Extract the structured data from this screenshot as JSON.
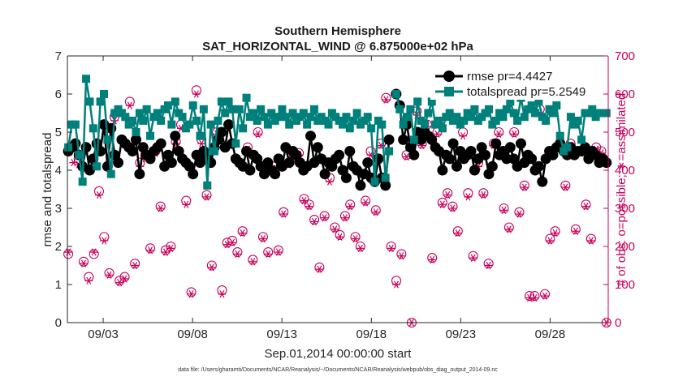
{
  "chart_data": {
    "type": "line",
    "title": "Southern Hemisphere",
    "subtitle": "SAT_HORIZONTAL_WIND @ 6.875000e+02 hPa",
    "xlabel": "Sep.01,2014 00:00:00 start",
    "ylabel": "rmse and totalspread",
    "ylabel_right": "# of obs: o=possible; ∗=assimilated",
    "footnote": "data file: /Users/gharamti/Documents/NCAR/Reanalysis/~/Documents/NCAR/Reanalysis/webpub/obs_diag_output_2014-09.nc",
    "xlim": [
      1.0,
      31.25
    ],
    "ylim": [
      0,
      7
    ],
    "ylim_right": [
      0,
      700
    ],
    "x_ticks": [
      3,
      8,
      13,
      18,
      23,
      28
    ],
    "x_tick_labels": [
      "09/03",
      "09/08",
      "09/13",
      "09/18",
      "09/23",
      "09/28"
    ],
    "y_ticks": [
      0,
      1,
      2,
      3,
      4,
      5,
      6,
      7
    ],
    "y_ticks_right": [
      0,
      100,
      200,
      300,
      400,
      500,
      600,
      700
    ],
    "grid": false,
    "legend_position": "top-right",
    "series": [
      {
        "name": "rmse pr=4.4427",
        "axis": "left",
        "color": "#000000",
        "marker": "circle",
        "values": [
          4.5,
          4.6,
          4.7,
          4.4,
          4.1,
          4.6,
          4.0,
          4.3,
          4.7,
          4.5,
          5.2,
          4.1,
          5.1,
          4.4,
          4.2,
          4.8,
          4.7,
          4.6,
          4.5,
          4.8,
          3.9,
          4.6,
          4.4,
          4.3,
          4.5,
          4.6,
          4.7,
          4.1,
          4.4,
          4.2,
          4.9,
          4.5,
          4.3,
          4.2,
          4.1,
          3.9,
          4.4,
          4.2,
          4.5,
          4.3,
          4.2,
          4.6,
          4.8,
          5.0,
          4.6,
          5.2,
          4.7,
          4.3,
          4.2,
          4.1,
          4.5,
          4.0,
          4.4,
          4.3,
          4.1,
          3.9,
          4.2,
          4.0,
          3.9,
          4.3,
          4.1,
          4.6,
          4.2,
          4.5,
          4.4,
          4.2,
          4.0,
          4.1,
          4.9,
          4.2,
          4.6,
          4.3,
          3.9,
          4.2,
          4.1,
          4.3,
          4.4,
          4.0,
          3.8,
          4.5,
          4.1,
          4.0,
          3.6,
          3.9,
          4.2,
          3.8,
          3.7,
          4.3,
          3.8,
          3.6,
          4.8,
          null,
          6.0,
          5.7,
          4.8,
          5.2,
          4.6,
          4.4,
          5.0,
          4.8,
          5.0,
          4.9,
          4.8,
          4.6,
          4.5,
          4.0,
          4.4,
          4.3,
          4.7,
          4.1,
          4.5,
          4.3,
          4.4,
          4.5,
          4.0,
          4.3,
          4.6,
          4.4,
          3.9,
          4.1,
          4.7,
          4.4,
          4.5,
          4.3,
          4.6,
          4.3,
          4.1,
          4.7,
          4.2,
          4.4,
          4.3,
          4.0,
          4.1,
          3.7,
          4.3,
          4.5,
          4.4,
          4.6,
          4.7,
          4.5,
          4.4,
          4.6,
          4.4,
          4.5,
          4.5,
          4.6,
          4.3,
          4.5,
          4.4,
          4.2,
          4.3,
          4.2
        ]
      },
      {
        "name": "totalspread pr=5.2549",
        "axis": "left",
        "color": "#00807a",
        "marker": "square",
        "values": [
          4.6,
          5.2,
          5.2,
          4.4,
          3.7,
          6.4,
          5.8,
          5.1,
          4.1,
          5.8,
          6.0,
          4.8,
          3.9,
          5.5,
          5.6,
          5.5,
          5.4,
          5.2,
          5.3,
          5.0,
          5.5,
          5.3,
          5.6,
          4.9,
          5.4,
          5.5,
          5.3,
          5.6,
          5.7,
          5.2,
          5.8,
          5.5,
          5.4,
          5.1,
          5.2,
          5.7,
          5.3,
          4.9,
          5.6,
          3.6,
          5.2,
          4.5,
          5.3,
          5.8,
          5.5,
          5.8,
          5.6,
          4.7,
          5.6,
          5.1,
          5.9,
          5.4,
          5.5,
          5.3,
          5.6,
          5.4,
          5.2,
          5.5,
          5.3,
          5.4,
          5.6,
          5.4,
          5.2,
          5.5,
          5.3,
          5.4,
          5.5,
          5.2,
          5.4,
          5.6,
          5.3,
          5.4,
          5.3,
          5.2,
          5.5,
          5.4,
          5.3,
          5.2,
          5.4,
          5.1,
          5.3,
          5.5,
          5.2,
          5.3,
          5.4,
          5.1,
          3.7,
          5.3,
          5.2,
          3.8,
          4.5,
          null,
          6.0,
          5.6,
          5.2,
          5.4,
          5.6,
          4.8,
          5.8,
          5.3,
          5.2,
          5.5,
          5.8,
          5.2,
          5.3,
          5.1,
          5.4,
          5.5,
          5.3,
          5.4,
          5.2,
          5.3,
          5.5,
          5.4,
          5.6,
          5.3,
          5.4,
          5.5,
          5.6,
          5.2,
          5.3,
          5.5,
          5.4,
          5.6,
          5.8,
          5.5,
          5.3,
          5.9,
          5.4,
          5.6,
          5.7,
          5.5,
          5.8,
          5.4,
          5.3,
          5.6,
          5.5,
          5.7,
          4.9,
          4.5,
          4.6,
          5.4,
          5.2,
          5.3,
          4.8,
          5.5,
          5.5,
          5.6,
          5.4,
          5.5,
          5.5,
          5.5
        ]
      },
      {
        "name": "possible",
        "axis": "right",
        "color": "#c8005a",
        "marker": "open-circle",
        "values": [
          180,
          460,
          430,
          160,
          120,
          180,
          345,
          225,
          130,
          540,
          110,
          120,
          580,
          155,
          420,
          440,
          195,
          450,
          305,
          190,
          200,
          475,
          520,
          320,
          80,
          610,
          480,
          335,
          150,
          500,
          85,
          210,
          215,
          185,
          240,
          460,
          165,
          500,
          225,
          185,
          410,
          190,
          290,
          420,
          435,
          445,
          325,
          310,
          270,
          145,
          280,
          380,
          250,
          230,
          280,
          310,
          225,
          200,
          320,
          450,
          295,
          470,
          590,
          200,
          110,
          180,
          440,
          0,
          555,
          470,
          520,
          170,
          500,
          315,
          340,
          305,
          240,
          500,
          340,
          175,
          420,
          340,
          155,
          470,
          500,
          300,
          250,
          500,
          290,
          360,
          70,
          70,
          560,
          75,
          220,
          240,
          600,
          360,
          470,
          245,
          450,
          310,
          220,
          460,
          450,
          0
        ]
      },
      {
        "name": "assimilated",
        "axis": "right",
        "color": "#c8005a",
        "marker": "asterisk",
        "values": [
          185,
          420,
          415,
          155,
          110,
          185,
          335,
          215,
          125,
          530,
          105,
          115,
          570,
          150,
          410,
          430,
          190,
          445,
          300,
          185,
          195,
          470,
          510,
          310,
          75,
          600,
          470,
          330,
          145,
          495,
          75,
          205,
          210,
          180,
          235,
          455,
          160,
          495,
          220,
          180,
          405,
          185,
          285,
          415,
          430,
          440,
          320,
          305,
          265,
          140,
          275,
          370,
          245,
          225,
          275,
          305,
          220,
          195,
          315,
          440,
          290,
          465,
          585,
          195,
          100,
          175,
          435,
          0,
          545,
          465,
          515,
          165,
          495,
          310,
          335,
          300,
          235,
          490,
          330,
          170,
          410,
          335,
          150,
          465,
          495,
          295,
          245,
          495,
          285,
          355,
          65,
          65,
          550,
          70,
          215,
          235,
          595,
          355,
          465,
          240,
          445,
          305,
          215,
          455,
          445,
          0
        ]
      }
    ]
  }
}
